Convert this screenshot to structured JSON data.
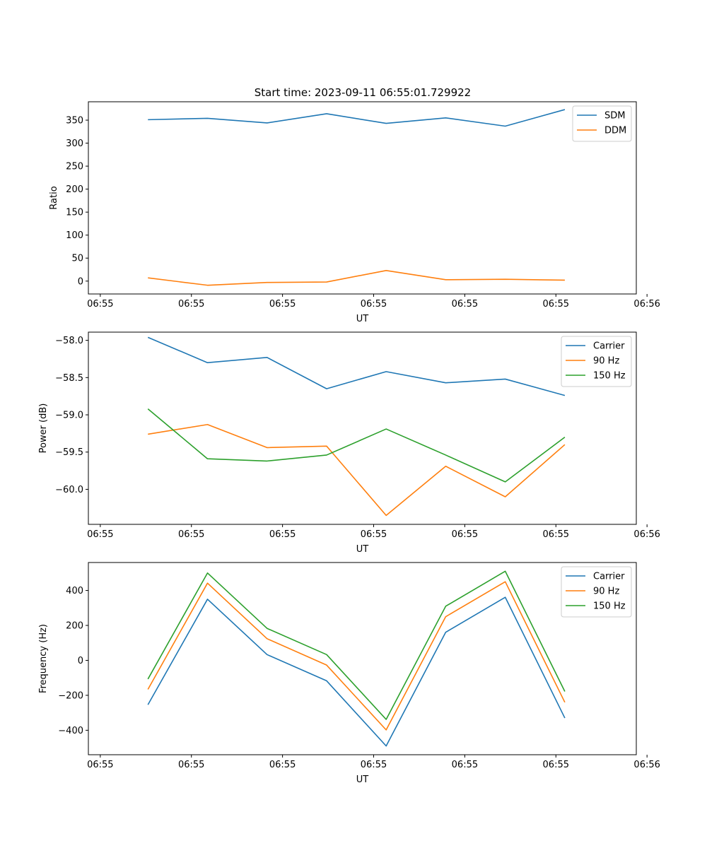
{
  "title": "Start time: 2023-09-11 06:55:01.729922",
  "colors": {
    "blue": "#1f77b4",
    "orange": "#ff7f0e",
    "green": "#2ca02c"
  },
  "chart_data": [
    {
      "type": "line",
      "title": "Start time: 2023-09-11 06:55:01.729922",
      "xlabel": "UT",
      "ylabel": "Ratio",
      "xlim": [
        0,
        9.2
      ],
      "ylim": [
        -28,
        390
      ],
      "x": [
        1,
        2,
        3,
        4,
        5,
        6,
        7,
        8
      ],
      "xtick_positions": [
        0.2,
        1.73,
        3.26,
        4.79,
        6.32,
        7.85,
        9.38
      ],
      "xtick_labels": [
        "06:55",
        "06:55",
        "06:55",
        "06:55",
        "06:55",
        "06:55",
        "06:56"
      ],
      "yticks": [
        0,
        50,
        100,
        150,
        200,
        250,
        300,
        350
      ],
      "ytick_labels": [
        "0",
        "50",
        "100",
        "150",
        "200",
        "250",
        "300",
        "350"
      ],
      "legend": "top-right",
      "series": [
        {
          "name": "SDM",
          "color": "#1f77b4",
          "values": [
            351,
            354,
            344,
            364,
            343,
            355,
            337,
            373
          ]
        },
        {
          "name": "DDM",
          "color": "#ff7f0e",
          "values": [
            7,
            -9,
            -3,
            -2,
            23,
            3,
            4,
            2
          ]
        }
      ]
    },
    {
      "type": "line",
      "title": "",
      "xlabel": "UT",
      "ylabel": "Power (dB)",
      "xlim": [
        0,
        9.2
      ],
      "ylim": [
        -60.47,
        -57.89
      ],
      "x": [
        1,
        2,
        3,
        4,
        5,
        6,
        7,
        8
      ],
      "xtick_positions": [
        0.2,
        1.73,
        3.26,
        4.79,
        6.32,
        7.85,
        9.38
      ],
      "xtick_labels": [
        "06:55",
        "06:55",
        "06:55",
        "06:55",
        "06:55",
        "06:55",
        "06:56"
      ],
      "yticks": [
        -60.0,
        -59.5,
        -59.0,
        -58.5,
        -58.0
      ],
      "ytick_labels": [
        "−60.0",
        "−59.5",
        "−59.0",
        "−58.5",
        "−58.0"
      ],
      "legend": "top-right",
      "series": [
        {
          "name": "Carrier",
          "color": "#1f77b4",
          "values": [
            -57.96,
            -58.3,
            -58.23,
            -58.65,
            -58.42,
            -58.57,
            -58.52,
            -58.74
          ]
        },
        {
          "name": "90 Hz",
          "color": "#ff7f0e",
          "values": [
            -59.26,
            -59.13,
            -59.44,
            -59.42,
            -60.35,
            -59.69,
            -60.1,
            -59.4
          ]
        },
        {
          "name": "150 Hz",
          "color": "#2ca02c",
          "values": [
            -58.92,
            -59.59,
            -59.62,
            -59.54,
            -59.19,
            -59.54,
            -59.9,
            -59.3
          ]
        }
      ]
    },
    {
      "type": "line",
      "title": "",
      "xlabel": "UT",
      "ylabel": "Frequency (Hz)",
      "xlim": [
        0,
        9.2
      ],
      "ylim": [
        -540,
        560
      ],
      "x": [
        1,
        2,
        3,
        4,
        5,
        6,
        7,
        8
      ],
      "xtick_positions": [
        0.2,
        1.73,
        3.26,
        4.79,
        6.32,
        7.85,
        9.38
      ],
      "xtick_labels": [
        "06:55",
        "06:55",
        "06:55",
        "06:55",
        "06:55",
        "06:55",
        "06:56"
      ],
      "yticks": [
        -400,
        -200,
        0,
        200,
        400
      ],
      "ytick_labels": [
        "−400",
        "−200",
        "0",
        "200",
        "400"
      ],
      "legend": "top-right",
      "series": [
        {
          "name": "Carrier",
          "color": "#1f77b4",
          "values": [
            -254,
            350,
            33,
            -117,
            -490,
            161,
            361,
            -330
          ]
        },
        {
          "name": "90 Hz",
          "color": "#ff7f0e",
          "values": [
            -166,
            442,
            124,
            -27,
            -398,
            250,
            450,
            -240
          ]
        },
        {
          "name": "150 Hz",
          "color": "#2ca02c",
          "values": [
            -107,
            500,
            183,
            33,
            -338,
            310,
            510,
            -178
          ]
        }
      ]
    }
  ]
}
